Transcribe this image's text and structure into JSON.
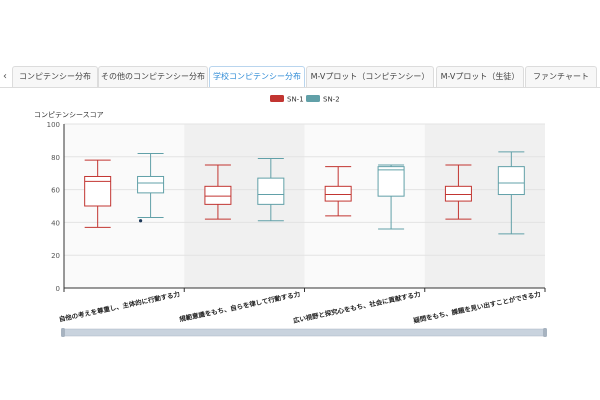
{
  "tabs": [
    {
      "label": "コンピテンシー分布",
      "active": false
    },
    {
      "label": "その他のコンピテンシー分布",
      "active": false
    },
    {
      "label": "学校コンピテンシー分布",
      "active": true
    },
    {
      "label": "M-Vプロット（コンピテンシー）",
      "active": false
    },
    {
      "label": "M-Vプロット（生徒）",
      "active": false
    },
    {
      "label": "ファンチャート",
      "active": false
    }
  ],
  "tab_prev_glyph": "‹",
  "chart_data": {
    "type": "boxplot",
    "ylabel": "コンピテンシースコア",
    "ylim": [
      0,
      100
    ],
    "yticks": [
      0,
      20,
      40,
      60,
      80,
      100
    ],
    "grid": true,
    "legend_position": "top-center",
    "categories": [
      "自他の考えを尊重し、主体的に行動する力",
      "規範意識をもち、自らを律して行動する力",
      "広い視野と探究心をもち、社会に貢献する力",
      "疑問をもち、課題を見い出すことができる力"
    ],
    "series": [
      {
        "name": "SN-1",
        "color": "#c23531",
        "boxes": [
          {
            "min": 37,
            "q1": 50,
            "median": 65,
            "q3": 68,
            "max": 78,
            "outliers": []
          },
          {
            "min": 42,
            "q1": 51,
            "median": 56,
            "q3": 62,
            "max": 75,
            "outliers": []
          },
          {
            "min": 44,
            "q1": 53,
            "median": 57,
            "q3": 62,
            "max": 74,
            "outliers": []
          },
          {
            "min": 42,
            "q1": 53,
            "median": 57,
            "q3": 62,
            "max": 75,
            "outliers": []
          }
        ]
      },
      {
        "name": "SN-2",
        "color": "#61a0a8",
        "boxes": [
          {
            "min": 43,
            "q1": 58,
            "median": 64,
            "q3": 68,
            "max": 82,
            "outliers": [
              41
            ]
          },
          {
            "min": 41,
            "q1": 51,
            "median": 57,
            "q3": 67,
            "max": 79,
            "outliers": []
          },
          {
            "min": 36,
            "q1": 56,
            "median": 72,
            "q3": 74,
            "max": 75,
            "outliers": []
          },
          {
            "min": 33,
            "q1": 57,
            "median": 64,
            "q3": 74,
            "max": 83,
            "outliers": []
          }
        ]
      }
    ]
  }
}
